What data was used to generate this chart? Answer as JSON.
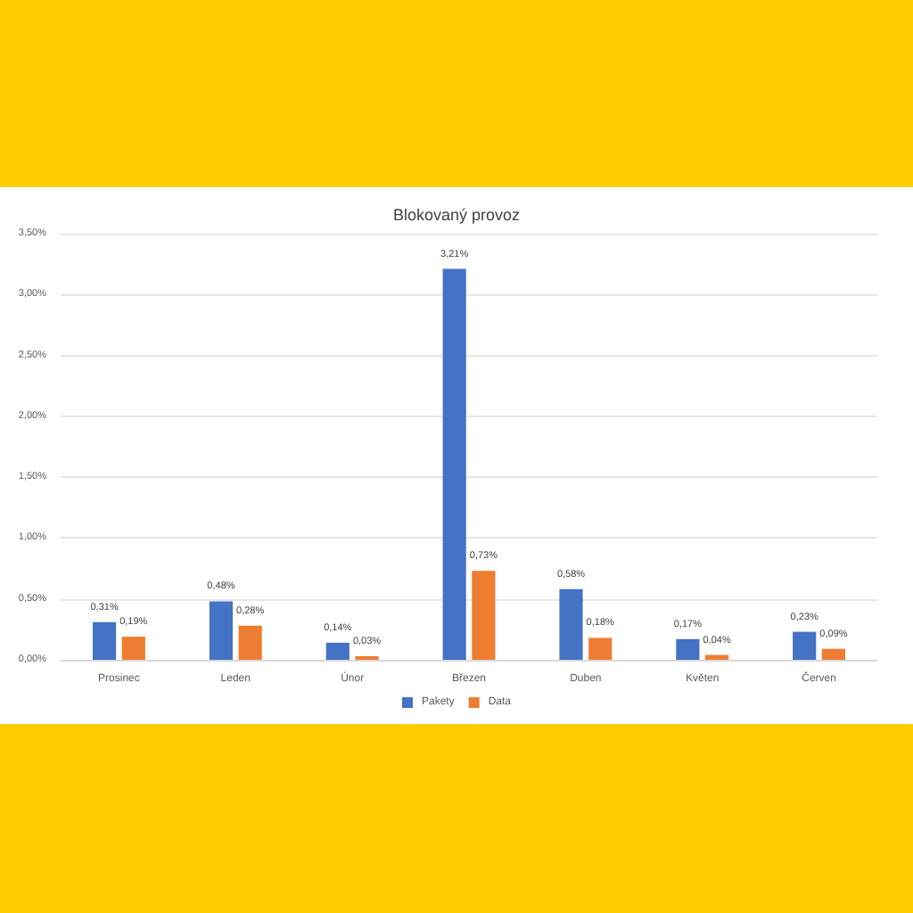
{
  "chart_data": {
    "type": "bar",
    "title": "Blokovaný provoz",
    "categories": [
      "Prosinec",
      "Leden",
      "Únor",
      "Březen",
      "Duben",
      "Květen",
      "Červen"
    ],
    "series": [
      {
        "name": "Pakety",
        "color": "#4472c4",
        "values": [
          0.31,
          0.48,
          0.14,
          3.21,
          0.58,
          0.17,
          0.23
        ],
        "value_labels": [
          "0,31%",
          "0,48%",
          "0,14%",
          "3,21%",
          "0,58%",
          "0,17%",
          "0,23%"
        ]
      },
      {
        "name": "Data",
        "color": "#ed7d31",
        "values": [
          0.19,
          0.28,
          0.03,
          0.73,
          0.18,
          0.04,
          0.09
        ],
        "value_labels": [
          "0,19%",
          "0,28%",
          "0,03%",
          "0,73%",
          "0,18%",
          "0,04%",
          "0,09%"
        ]
      }
    ],
    "ylim": [
      0,
      3.5
    ],
    "yticks": [
      {
        "value": 0,
        "label": "0,00%"
      },
      {
        "value": 0.5,
        "label": "0,50%"
      },
      {
        "value": 1,
        "label": "1,00%"
      },
      {
        "value": 1.5,
        "label": "1,50%"
      },
      {
        "value": 2,
        "label": "2,00%"
      },
      {
        "value": 2.5,
        "label": "2,50%"
      },
      {
        "value": 3,
        "label": "3,00%"
      },
      {
        "value": 3.5,
        "label": "3,50%"
      }
    ],
    "grid": "y",
    "legend": "bottom"
  }
}
